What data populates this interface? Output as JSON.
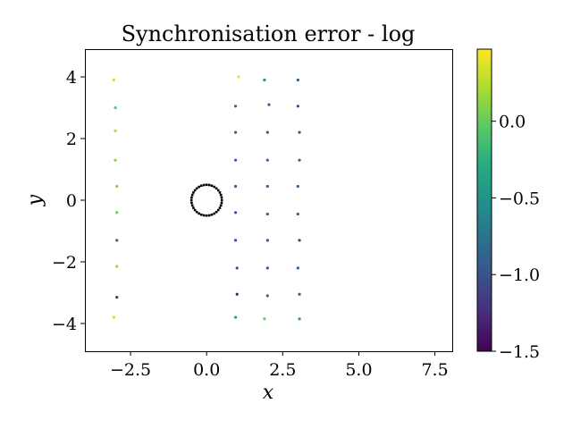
{
  "chart_data": {
    "type": "scatter",
    "title": "Synchronisation error - log",
    "xlabel": "x",
    "ylabel": "y",
    "xlim": [
      -4.0,
      8.1
    ],
    "ylim": [
      -4.9,
      4.9
    ],
    "xticks": [
      -2.5,
      0.0,
      2.5,
      5.0,
      7.5
    ],
    "xtick_labels": [
      "−2.5",
      "0.0",
      "2.5",
      "5.0",
      "7.5"
    ],
    "yticks": [
      -4,
      -2,
      0,
      2,
      4
    ],
    "ytick_labels": [
      "−4",
      "−2",
      "0",
      "2",
      "4"
    ],
    "grid": false,
    "colormap": "viridis",
    "colorbar": {
      "range": [
        -1.5,
        0.47
      ],
      "ticks": [
        0.0,
        -0.5,
        -1.0,
        -1.5
      ],
      "tick_labels": [
        "0.0",
        "−0.5",
        "−1.0",
        "−1.5"
      ]
    },
    "circle": {
      "center": [
        0.0,
        0.0
      ],
      "radius": 0.5,
      "color": "#000000",
      "n_markers": 36
    },
    "points": [
      {
        "x": -3.05,
        "y": 3.9,
        "v": 0.35
      },
      {
        "x": -3.0,
        "y": 3.0,
        "v": -0.05
      },
      {
        "x": -3.0,
        "y": 2.25,
        "v": 0.25
      },
      {
        "x": -3.0,
        "y": 1.3,
        "v": 0.1
      },
      {
        "x": -2.95,
        "y": 0.45,
        "v": 0.1
      },
      {
        "x": -2.95,
        "y": -0.4,
        "v": 0.0
      },
      {
        "x": -2.95,
        "y": -1.3,
        "v": -0.85
      },
      {
        "x": -2.95,
        "y": -2.15,
        "v": 0.2
      },
      {
        "x": -2.95,
        "y": -3.15,
        "v": -1.2
      },
      {
        "x": -3.05,
        "y": -3.8,
        "v": 0.3
      },
      {
        "x": 1.05,
        "y": 4.0,
        "v": 0.4
      },
      {
        "x": 1.9,
        "y": 3.9,
        "v": -0.5
      },
      {
        "x": 3.0,
        "y": 3.9,
        "v": -0.9
      },
      {
        "x": 0.95,
        "y": 3.05,
        "v": -0.9
      },
      {
        "x": 2.05,
        "y": 3.1,
        "v": -0.9
      },
      {
        "x": 3.0,
        "y": 3.05,
        "v": -1.1
      },
      {
        "x": 0.95,
        "y": 2.2,
        "v": -0.9
      },
      {
        "x": 2.0,
        "y": 2.2,
        "v": -0.9
      },
      {
        "x": 3.05,
        "y": 2.2,
        "v": -0.9
      },
      {
        "x": 0.95,
        "y": 1.3,
        "v": -0.9
      },
      {
        "x": 2.0,
        "y": 1.3,
        "v": -0.9
      },
      {
        "x": 3.05,
        "y": 1.3,
        "v": -0.9
      },
      {
        "x": 0.95,
        "y": 0.45,
        "v": -0.9
      },
      {
        "x": 2.0,
        "y": 0.45,
        "v": -0.9
      },
      {
        "x": 3.0,
        "y": 0.45,
        "v": -0.9
      },
      {
        "x": 0.95,
        "y": -0.4,
        "v": -1.0
      },
      {
        "x": 2.0,
        "y": -0.45,
        "v": -0.9
      },
      {
        "x": 3.0,
        "y": -0.45,
        "v": -0.9
      },
      {
        "x": 0.95,
        "y": -1.3,
        "v": -1.0
      },
      {
        "x": 2.0,
        "y": -1.3,
        "v": -1.0
      },
      {
        "x": 3.05,
        "y": -1.3,
        "v": -1.1
      },
      {
        "x": 1.0,
        "y": -2.2,
        "v": -1.0
      },
      {
        "x": 2.0,
        "y": -2.2,
        "v": -1.0
      },
      {
        "x": 3.0,
        "y": -2.2,
        "v": -0.9
      },
      {
        "x": 1.0,
        "y": -3.05,
        "v": -1.3
      },
      {
        "x": 2.0,
        "y": -3.1,
        "v": -0.9
      },
      {
        "x": 3.05,
        "y": -3.05,
        "v": -0.9
      },
      {
        "x": 0.95,
        "y": -3.8,
        "v": -0.35
      },
      {
        "x": 1.9,
        "y": -3.85,
        "v": 0.0
      },
      {
        "x": 3.05,
        "y": -3.85,
        "v": -0.4
      }
    ]
  }
}
